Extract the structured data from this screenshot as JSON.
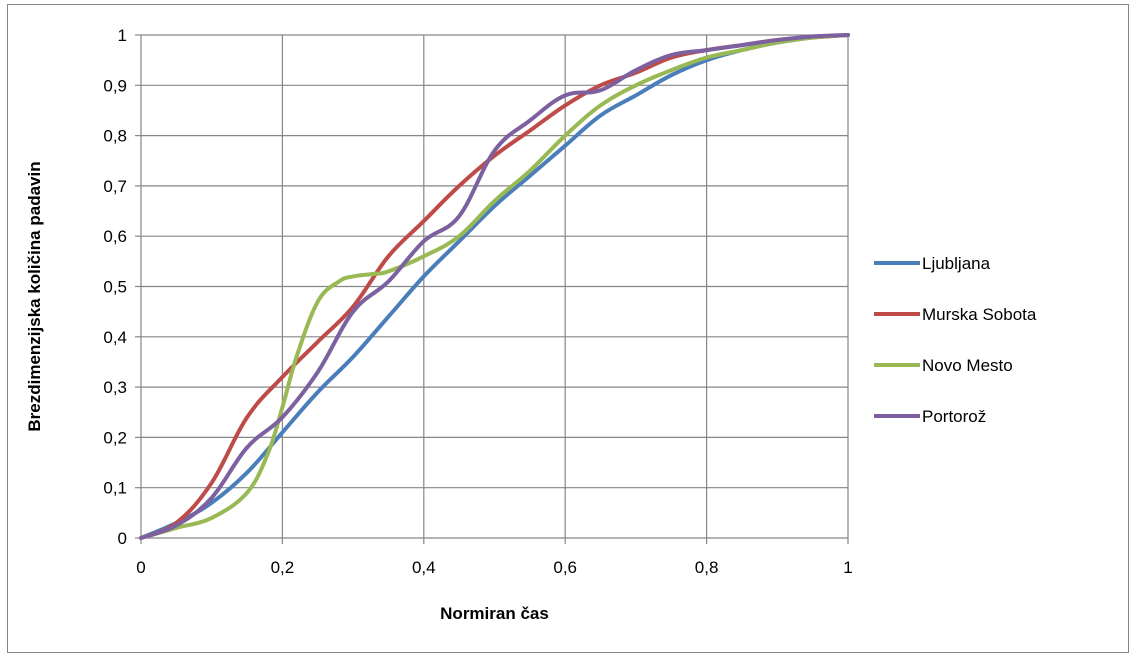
{
  "chart_data": {
    "type": "line",
    "title": "",
    "xlabel": "Normiran čas",
    "ylabel": "Brezdimenzijska količina padavin",
    "xlim": [
      0,
      1
    ],
    "ylim": [
      0,
      1
    ],
    "x_ticks": [
      "0",
      "0,2",
      "0,4",
      "0,6",
      "0,8",
      "1"
    ],
    "y_ticks": [
      "0",
      "0,1",
      "0,2",
      "0,3",
      "0,4",
      "0,5",
      "0,6",
      "0,7",
      "0,8",
      "0,9",
      "1"
    ],
    "grid": true,
    "legend_position": "right",
    "series": [
      {
        "name": "Ljubljana",
        "color": "#4a7ebb",
        "x": [
          0,
          0.05,
          0.1,
          0.15,
          0.2,
          0.25,
          0.3,
          0.35,
          0.4,
          0.45,
          0.5,
          0.55,
          0.6,
          0.65,
          0.7,
          0.75,
          0.8,
          0.85,
          0.9,
          0.95,
          1
        ],
        "y": [
          0,
          0.03,
          0.07,
          0.13,
          0.21,
          0.29,
          0.36,
          0.44,
          0.52,
          0.59,
          0.66,
          0.72,
          0.78,
          0.84,
          0.88,
          0.92,
          0.95,
          0.97,
          0.985,
          0.995,
          1
        ]
      },
      {
        "name": "Murska Sobota",
        "color": "#be4b48",
        "x": [
          0,
          0.05,
          0.1,
          0.15,
          0.2,
          0.25,
          0.3,
          0.35,
          0.4,
          0.45,
          0.5,
          0.55,
          0.6,
          0.65,
          0.7,
          0.75,
          0.8,
          0.85,
          0.9,
          0.95,
          1
        ],
        "y": [
          0,
          0.03,
          0.11,
          0.24,
          0.32,
          0.39,
          0.46,
          0.56,
          0.63,
          0.7,
          0.76,
          0.81,
          0.86,
          0.9,
          0.925,
          0.955,
          0.97,
          0.98,
          0.99,
          0.995,
          1
        ]
      },
      {
        "name": "Novo Mesto",
        "color": "#98b954",
        "x": [
          0,
          0.05,
          0.1,
          0.15,
          0.18,
          0.2,
          0.22,
          0.25,
          0.28,
          0.3,
          0.33,
          0.35,
          0.4,
          0.45,
          0.5,
          0.55,
          0.6,
          0.65,
          0.7,
          0.75,
          0.8,
          0.85,
          0.9,
          0.95,
          1
        ],
        "y": [
          0,
          0.02,
          0.04,
          0.09,
          0.17,
          0.26,
          0.36,
          0.47,
          0.51,
          0.52,
          0.525,
          0.53,
          0.56,
          0.6,
          0.67,
          0.73,
          0.8,
          0.86,
          0.9,
          0.93,
          0.955,
          0.97,
          0.985,
          0.995,
          1
        ]
      },
      {
        "name": "Portorož",
        "color": "#7d60a0",
        "x": [
          0,
          0.05,
          0.1,
          0.15,
          0.2,
          0.25,
          0.3,
          0.35,
          0.4,
          0.45,
          0.5,
          0.55,
          0.6,
          0.65,
          0.7,
          0.75,
          0.8,
          0.85,
          0.9,
          0.95,
          1
        ],
        "y": [
          0,
          0.025,
          0.08,
          0.18,
          0.24,
          0.33,
          0.45,
          0.51,
          0.59,
          0.64,
          0.77,
          0.83,
          0.88,
          0.89,
          0.93,
          0.96,
          0.97,
          0.98,
          0.99,
          0.997,
          1
        ]
      }
    ]
  }
}
